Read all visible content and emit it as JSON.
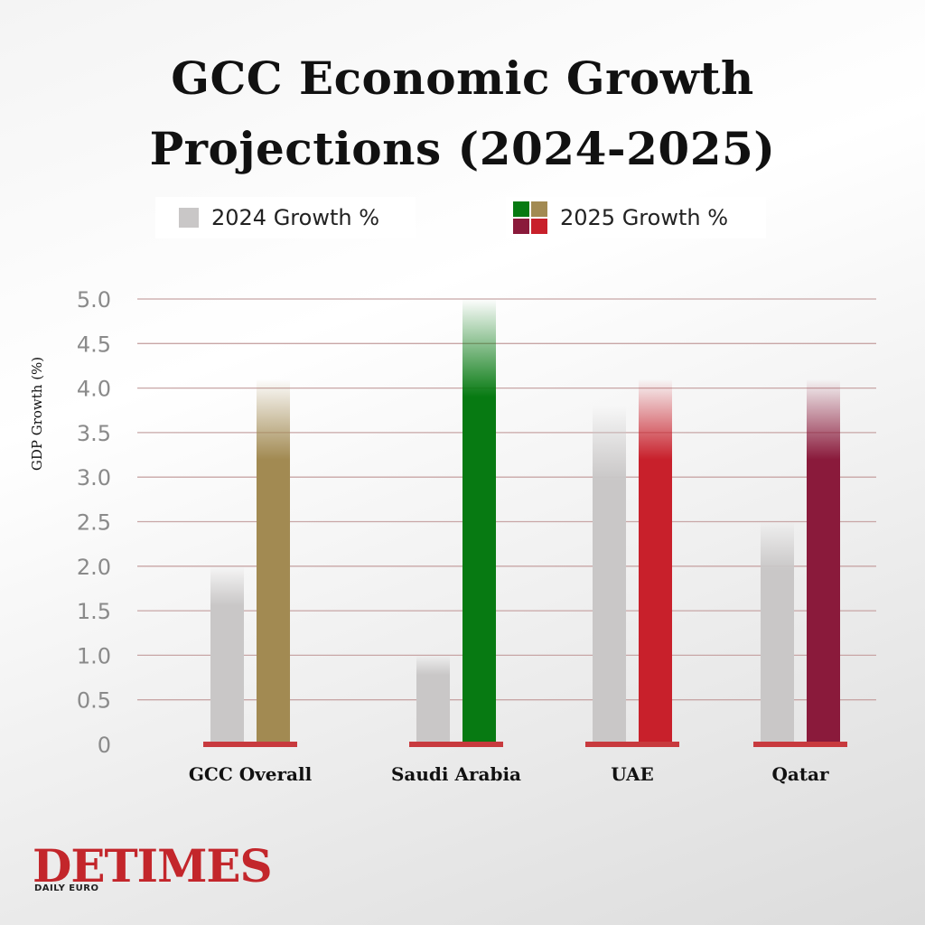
{
  "colors": {
    "grey_2024": "#c9c7c7",
    "gold": "#a28a52",
    "green": "#077a12",
    "red": "#c8202b",
    "maroon": "#8a1a3b",
    "baseline": "#c83a3e",
    "gridline": "#c8a6a6"
  },
  "chart_data": {
    "type": "bar",
    "title": "GCC Economic Growth Projections (2024-2025)",
    "ylabel": "GDP Growth (%)",
    "xlabel": "",
    "ylim": [
      0,
      5.0
    ],
    "yticks": [
      "0",
      "0.5",
      "1.0",
      "1.5",
      "2.0",
      "2.5",
      "3.0",
      "3.5",
      "4.0",
      "4.5",
      "5.0"
    ],
    "categories": [
      "GCC Overall",
      "Saudi Arabia",
      "UAE",
      "Qatar"
    ],
    "series": [
      {
        "name": "2024 Growth %",
        "values": [
          2.0,
          1.0,
          3.8,
          2.5
        ]
      },
      {
        "name": "2025 Growth %",
        "values": [
          4.1,
          5.0,
          4.1,
          4.1
        ]
      }
    ],
    "bar_colors_2025": [
      "#a28a52",
      "#077a12",
      "#c8202b",
      "#8a1a3b"
    ],
    "legend_position": "top"
  },
  "legend": {
    "item_2024": "2024 Growth %",
    "item_2025": "2025 Growth %",
    "swatch_2025": [
      "#077a12",
      "#a28a52",
      "#8a1a3b",
      "#c8202b"
    ]
  },
  "logo": {
    "main": "DETIMES",
    "sub": "DAILY EURO"
  }
}
